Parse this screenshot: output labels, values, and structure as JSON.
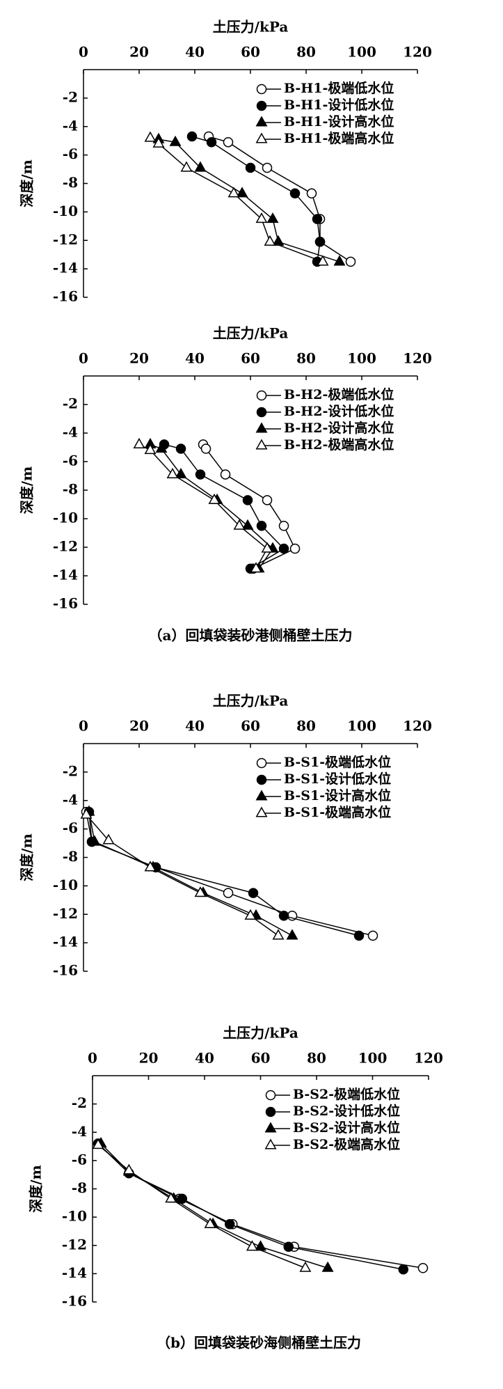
{
  "chart_data": [
    {
      "type": "line",
      "title": "土压力/kPa",
      "y_label": "深度/m",
      "xlim": [
        0,
        120
      ],
      "xticks": [
        0,
        20,
        40,
        60,
        80,
        100,
        120
      ],
      "ylim": [
        -16,
        0
      ],
      "yticks": [
        -2,
        -4,
        -6,
        -8,
        -10,
        -12,
        -14,
        -16
      ],
      "series": [
        {
          "name": "B-H1-极端低水位",
          "color": "#000000",
          "marker": "circle",
          "filled": false,
          "x": [
            45,
            52,
            66,
            82,
            85,
            85,
            96
          ],
          "y": [
            -4.7,
            -5.1,
            -6.9,
            -8.7,
            -10.5,
            -12.1,
            -13.5
          ]
        },
        {
          "name": "B-H1-设计低水位",
          "color": "#000000",
          "marker": "circle",
          "filled": true,
          "x": [
            39,
            46,
            60,
            76,
            84,
            85,
            84
          ],
          "y": [
            -4.7,
            -5.1,
            -6.9,
            -8.7,
            -10.5,
            -12.1,
            -13.5
          ]
        },
        {
          "name": "B-H1-设计高水位",
          "color": "#000000",
          "marker": "triangle",
          "filled": true,
          "x": [
            27,
            33,
            42,
            57,
            68,
            70,
            92
          ],
          "y": [
            -4.9,
            -5.1,
            -6.9,
            -8.7,
            -10.5,
            -12.1,
            -13.5
          ]
        },
        {
          "name": "B-H1-极端高水位",
          "color": "#000000",
          "marker": "triangle",
          "filled": false,
          "x": [
            24,
            27,
            37,
            54,
            64,
            67,
            86
          ],
          "y": [
            -4.8,
            -5.2,
            -6.9,
            -8.7,
            -10.5,
            -12.1,
            -13.5
          ]
        }
      ]
    },
    {
      "type": "line",
      "title": "土压力/kPa",
      "y_label": "深度/m",
      "xlim": [
        0,
        120
      ],
      "xticks": [
        0,
        20,
        40,
        60,
        80,
        100,
        120
      ],
      "ylim": [
        -16,
        0
      ],
      "yticks": [
        -2,
        -4,
        -6,
        -8,
        -10,
        -12,
        -14,
        -16
      ],
      "series": [
        {
          "name": "B-H2-极端低水位",
          "color": "#000000",
          "marker": "circle",
          "filled": false,
          "x": [
            43,
            44,
            51,
            66,
            72,
            76,
            61
          ],
          "y": [
            -4.8,
            -5.1,
            -6.9,
            -8.7,
            -10.5,
            -12.1,
            -13.5
          ]
        },
        {
          "name": "B-H2-设计低水位",
          "color": "#000000",
          "marker": "circle",
          "filled": true,
          "x": [
            29,
            35,
            42,
            59,
            64,
            72,
            60
          ],
          "y": [
            -4.8,
            -5.1,
            -6.9,
            -8.7,
            -10.5,
            -12.1,
            -13.5
          ]
        },
        {
          "name": "B-H2-设计高水位",
          "color": "#000000",
          "marker": "triangle",
          "filled": true,
          "x": [
            24,
            28,
            35,
            48,
            59,
            68,
            63
          ],
          "y": [
            -4.8,
            -5.1,
            -6.9,
            -8.7,
            -10.5,
            -12.1,
            -13.5
          ]
        },
        {
          "name": "B-H2-极端高水位",
          "color": "#000000",
          "marker": "triangle",
          "filled": false,
          "x": [
            20,
            24,
            32,
            47,
            56,
            66,
            62
          ],
          "y": [
            -4.8,
            -5.2,
            -6.9,
            -8.7,
            -10.5,
            -12.1,
            -13.5
          ]
        }
      ]
    },
    {
      "type": "line",
      "title": "土压力/kPa",
      "y_label": "深度/m",
      "xlim": [
        0,
        120
      ],
      "xticks": [
        0,
        20,
        40,
        60,
        80,
        100,
        120
      ],
      "ylim": [
        -16,
        0
      ],
      "yticks": [
        -2,
        -4,
        -6,
        -8,
        -10,
        -12,
        -14,
        -16
      ],
      "series": [
        {
          "name": "B-S1-极端低水位",
          "color": "#000000",
          "marker": "circle",
          "filled": false,
          "x": [
            1,
            3,
            26,
            52,
            75,
            104
          ],
          "y": [
            -4.8,
            -6.9,
            -8.7,
            -10.5,
            -12.1,
            -13.5
          ]
        },
        {
          "name": "B-S1-设计低水位",
          "color": "#000000",
          "marker": "circle",
          "filled": true,
          "x": [
            2,
            3,
            26,
            61,
            72,
            99
          ],
          "y": [
            -4.8,
            -6.9,
            -8.7,
            -10.5,
            -12.1,
            -13.5
          ]
        },
        {
          "name": "B-S1-设计高水位",
          "color": "#000000",
          "marker": "triangle",
          "filled": true,
          "x": [
            2,
            4,
            25,
            43,
            62,
            75
          ],
          "y": [
            -4.8,
            -6.9,
            -8.7,
            -10.5,
            -12.1,
            -13.5
          ]
        },
        {
          "name": "B-S1-极端高水位",
          "color": "#000000",
          "marker": "triangle",
          "filled": false,
          "x": [
            1,
            9,
            24,
            42,
            60,
            70
          ],
          "y": [
            -5,
            -6.8,
            -8.7,
            -10.5,
            -12.1,
            -13.5
          ]
        }
      ]
    },
    {
      "type": "line",
      "title": "土压力/kPa",
      "y_label": "深度/m",
      "xlim": [
        0,
        120
      ],
      "xticks": [
        0,
        20,
        40,
        60,
        80,
        100,
        120
      ],
      "ylim": [
        -16,
        0
      ],
      "yticks": [
        -2,
        -4,
        -6,
        -8,
        -10,
        -12,
        -14,
        -16
      ],
      "series": [
        {
          "name": "B-S2-极端低水位",
          "color": "#000000",
          "marker": "circle",
          "filled": false,
          "x": [
            2,
            13,
            31,
            50,
            72,
            118
          ],
          "y": [
            -4.8,
            -6.9,
            -8.7,
            -10.5,
            -12.1,
            -13.6
          ]
        },
        {
          "name": "B-S2-设计低水位",
          "color": "#000000",
          "marker": "circle",
          "filled": true,
          "x": [
            2,
            13,
            32,
            49,
            70,
            111
          ],
          "y": [
            -4.8,
            -6.9,
            -8.7,
            -10.5,
            -12.1,
            -13.7
          ]
        },
        {
          "name": "B-S2-设计高水位",
          "color": "#000000",
          "marker": "triangle",
          "filled": true,
          "x": [
            3,
            13,
            29,
            43,
            60,
            84
          ],
          "y": [
            -4.8,
            -6.8,
            -8.7,
            -10.5,
            -12.1,
            -13.6
          ]
        },
        {
          "name": "B-S2-极端高水位",
          "color": "#000000",
          "marker": "triangle",
          "filled": false,
          "x": [
            2,
            13,
            28,
            42,
            57,
            76
          ],
          "y": [
            -4.9,
            -6.7,
            -8.7,
            -10.5,
            -12.1,
            -13.6
          ]
        }
      ]
    }
  ],
  "captions": [
    "（a）回填袋装砂港侧桶壁土压力",
    "（b）回填袋装砂海侧桶壁土压力"
  ]
}
